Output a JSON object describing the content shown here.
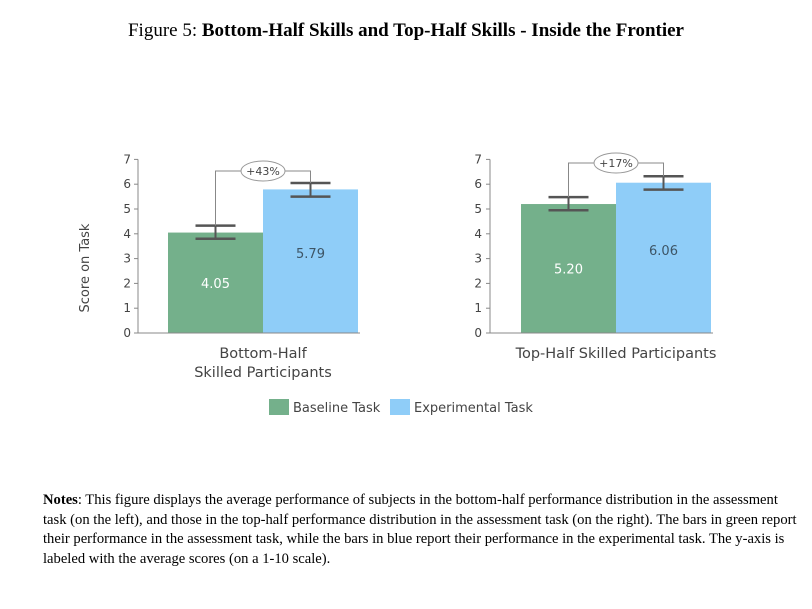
{
  "title": {
    "prefix": "Figure 5:",
    "main": "Bottom-Half Skills and Top-Half Skills - Inside the Frontier"
  },
  "notes": {
    "label": "Notes",
    "text": ": This figure displays the average performance of subjects in the bottom-half performance distribution in the assessment task (on the left), and those in the top-half performance distribution in the assessment task (on the right). The bars in green report their performance in the assessment task, while the bars in blue report their performance in the experimental task. The y-axis is labeled with the average scores (on a 1-10 scale)."
  },
  "colors": {
    "baseline": "#74b08b",
    "experimental": "#8fcdf8",
    "error_bar": "#555555",
    "bracket": "#888888"
  },
  "chart_data": {
    "type": "bar",
    "ylabel": "Score on Task",
    "ylim": [
      0,
      7
    ],
    "yticks": [
      0,
      1,
      2,
      3,
      4,
      5,
      6,
      7
    ],
    "legend": [
      "Baseline Task",
      "Experimental Task"
    ],
    "panels": [
      {
        "category_lines": [
          "Bottom-Half",
          "Skilled Participants"
        ],
        "values": [
          4.05,
          5.79
        ],
        "labels": [
          "4.05",
          "5.79"
        ],
        "errors": [
          [
            3.8,
            4.33
          ],
          [
            5.5,
            6.05
          ]
        ],
        "annotation": "+43%"
      },
      {
        "category_lines": [
          "Top-Half Skilled Participants"
        ],
        "values": [
          5.2,
          6.06
        ],
        "labels": [
          "5.20",
          "6.06"
        ],
        "errors": [
          [
            4.95,
            5.48
          ],
          [
            5.78,
            6.32
          ]
        ],
        "annotation": "+17%"
      }
    ]
  }
}
